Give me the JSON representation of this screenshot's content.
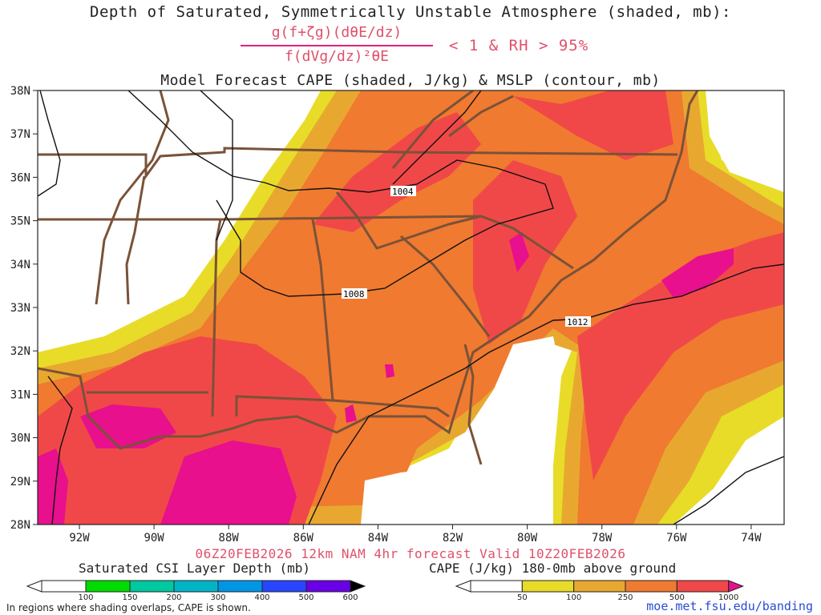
{
  "title_line1": "Depth of Saturated, Symmetrically Unstable Atmosphere (shaded, mb):",
  "formula_numerator": "g(f+ζg)(dθE/dz)",
  "formula_denominator": "f(dVg/dz)²θE",
  "formula_condition": "< 1 & RH > 95%",
  "title_line3": "Model Forecast CAPE (shaded, J/kg) & MSLP (contour, mb)",
  "lat_labels": [
    "38N",
    "37N",
    "36N",
    "35N",
    "34N",
    "33N",
    "32N",
    "31N",
    "30N",
    "29N",
    "28N"
  ],
  "lon_labels": [
    "92W",
    "90W",
    "88W",
    "86W",
    "84W",
    "82W",
    "80W",
    "78W",
    "76W",
    "74W"
  ],
  "isobar_labels": [
    "1004",
    "1008",
    "1012"
  ],
  "forecast_line": "06Z20FEB2026 12km NAM 4hr forecast Valid 10Z20FEB2026",
  "csi_colorbar": {
    "title": "Saturated CSI Layer Depth (mb)",
    "labels": [
      "100",
      "150",
      "200",
      "300",
      "400",
      "500",
      "600"
    ],
    "colors": [
      "#00dc00",
      "#00c8a0",
      "#00b4c8",
      "#0096e6",
      "#2846ff",
      "#6a00e6",
      "#000000"
    ]
  },
  "cape_colorbar": {
    "title": "CAPE (J/kg) 180-0mb above ground",
    "labels": [
      "50",
      "100",
      "250",
      "500",
      "1000"
    ],
    "colors": [
      "#e8dc28",
      "#e8a830",
      "#f07a30",
      "#f04848",
      "#e8108c"
    ]
  },
  "note": "In regions where shading overlaps, CAPE is shown.",
  "url": "moe.met.fsu.edu/banding"
}
